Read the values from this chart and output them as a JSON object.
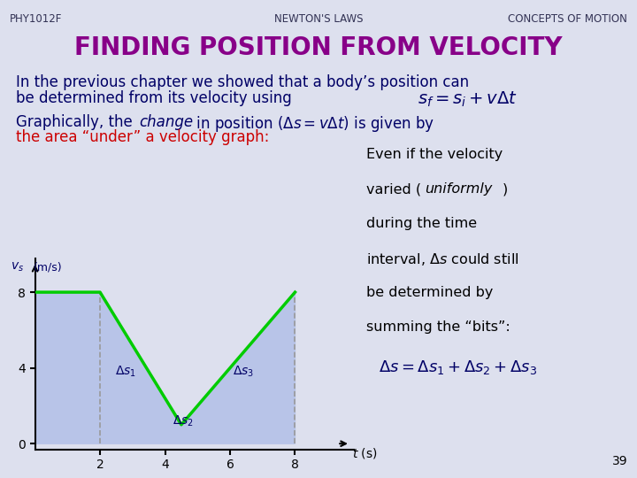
{
  "bg_color": "#dde0ee",
  "header_left": "PHY1012F",
  "header_center": "NEWTON'S LAWS",
  "header_right": "CONCEPTS OF MOTION",
  "header_color": "#333355",
  "header_fontsize": 8.5,
  "title": "FINDING POSITION FROM VELOCITY",
  "title_color": "#880088",
  "title_fontsize": 20,
  "body_color": "#000066",
  "body_fontsize": 12,
  "red_color": "#cc0000",
  "yellow_color": "#ddcc00",
  "graph_line_color": "#00cc00",
  "graph_area_color": "#b8c4e8",
  "dashed_color": "#999999",
  "label_color": "#000066",
  "page_num": "39",
  "t_points": [
    0,
    2,
    4.5,
    8
  ],
  "v_points": [
    8,
    8,
    1,
    8
  ],
  "graph_xlim": [
    0,
    9.8
  ],
  "graph_ylim": [
    -0.3,
    9.8
  ]
}
